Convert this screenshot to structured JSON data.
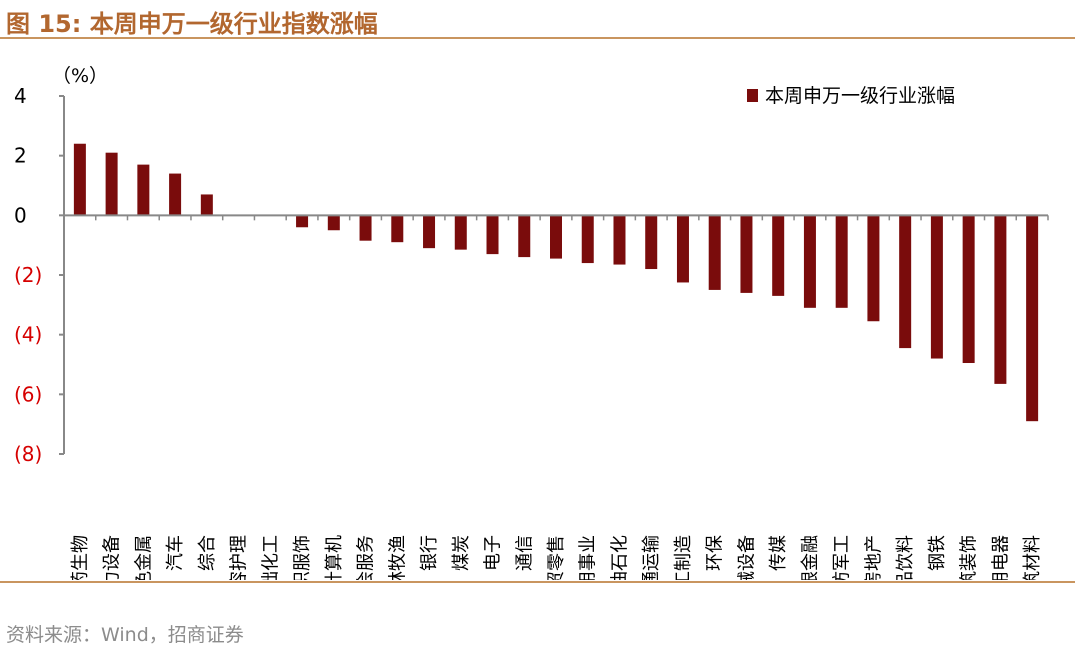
{
  "figure": {
    "title": "图 15:  本周申万一级行业指数涨幅",
    "source": "资料来源：Wind，招商证券"
  },
  "colors": {
    "bar": "#7a0c0c",
    "title": "#b2672f",
    "rule": "#c9955f",
    "negative_tick": "#d60000",
    "axis": "#888888"
  },
  "chart_data": {
    "type": "bar",
    "ylabel": "（%）",
    "ylim": [
      -8,
      4
    ],
    "yticks": [
      4,
      2,
      0,
      -2,
      -4,
      -6,
      -8
    ],
    "ytick_labels": [
      "4",
      "2",
      "0",
      "(2)",
      "(4)",
      "(6)",
      "(8)"
    ],
    "legend": {
      "label": "本周申万一级行业涨幅",
      "position": "top-right"
    },
    "categories": [
      "医药生物",
      "电力设备",
      "有色金属",
      "汽车",
      "综合",
      "美容护理",
      "基础化工",
      "纺织服饰",
      "计算机",
      "社会服务",
      "农林牧渔",
      "银行",
      "煤炭",
      "电子",
      "通信",
      "商贸零售",
      "公用事业",
      "石油石化",
      "交通运输",
      "轻工制造",
      "环保",
      "机械设备",
      "传媒",
      "非银金融",
      "国防军工",
      "房地产",
      "食品饮料",
      "钢铁",
      "建筑装饰",
      "家用电器",
      "建筑材料"
    ],
    "values": [
      2.4,
      2.1,
      1.7,
      1.4,
      0.7,
      0.0,
      0.0,
      -0.4,
      -0.5,
      -0.85,
      -0.9,
      -1.1,
      -1.15,
      -1.3,
      -1.4,
      -1.45,
      -1.6,
      -1.65,
      -1.8,
      -2.25,
      -2.5,
      -2.6,
      -2.7,
      -3.1,
      -3.1,
      -3.55,
      -4.45,
      -4.8,
      -4.95,
      -5.65,
      -6.9
    ]
  }
}
